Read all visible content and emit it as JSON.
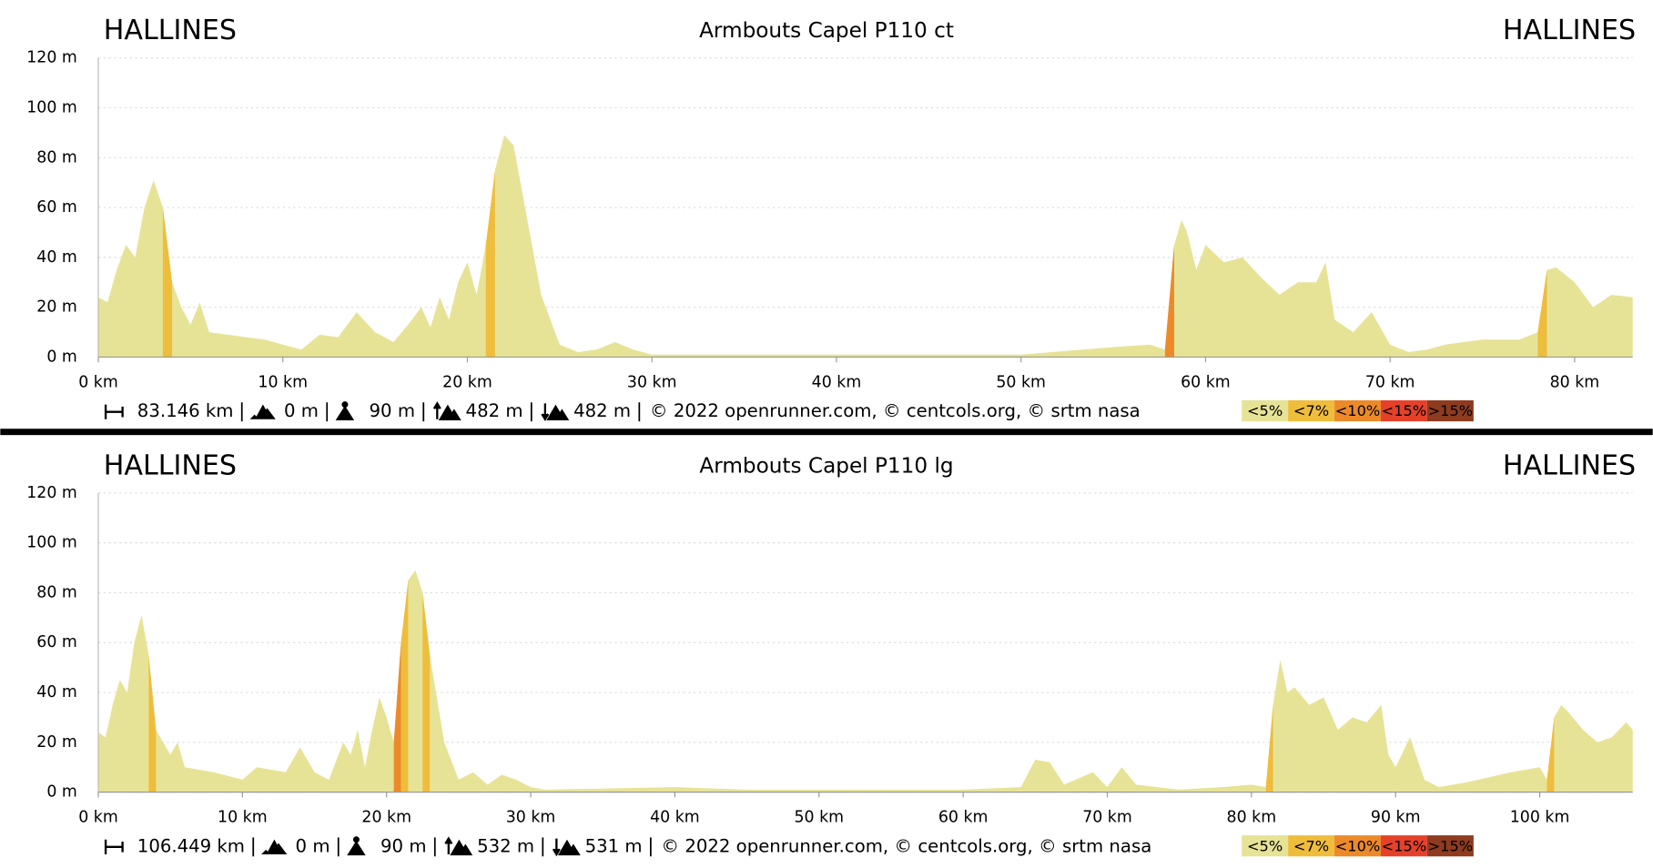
{
  "chart_data": [
    {
      "type": "area",
      "title": "Armbouts Capel P110 ct",
      "start_label": "HALLINES",
      "end_label": "HALLINES",
      "x": [
        0,
        0.5,
        1,
        1.5,
        2,
        2.5,
        3,
        3.5,
        4,
        4.5,
        5,
        5.5,
        6,
        7,
        8,
        9,
        10,
        11,
        12,
        13,
        14,
        15,
        16,
        17,
        17.5,
        18,
        18.5,
        19,
        19.5,
        20,
        20.5,
        21,
        21.5,
        22,
        22.5,
        23,
        24,
        25,
        26,
        27,
        28,
        29,
        30,
        35,
        40,
        45,
        50,
        55,
        57,
        57.8,
        58.3,
        58.7,
        59,
        59.5,
        60,
        61,
        62,
        63,
        64,
        65,
        66,
        66.5,
        67,
        68,
        69,
        70,
        71,
        72,
        73,
        75,
        77,
        78,
        78.5,
        79,
        80,
        81,
        82,
        83.146
      ],
      "values": [
        24,
        22,
        35,
        45,
        40,
        60,
        71,
        60,
        30,
        20,
        13,
        22,
        10,
        9,
        8,
        7,
        5,
        3,
        9,
        8,
        18,
        10,
        6,
        15,
        20,
        12,
        24,
        15,
        30,
        38,
        25,
        45,
        75,
        89,
        85,
        65,
        25,
        5,
        2,
        3,
        6,
        3,
        1,
        1,
        1,
        1,
        1,
        4,
        5,
        3,
        45,
        55,
        50,
        35,
        45,
        38,
        40,
        32,
        25,
        30,
        30,
        38,
        15,
        10,
        18,
        5,
        2,
        3,
        5,
        7,
        7,
        10,
        35,
        36,
        30,
        20,
        25,
        24
      ],
      "color": "#e6e396",
      "xlim": [
        0,
        83.146
      ],
      "ylim": [
        0,
        120
      ],
      "xticks": [
        {
          "value": 0,
          "label": "0 km"
        },
        {
          "value": 10,
          "label": "10 km"
        },
        {
          "value": 20,
          "label": "20 km"
        },
        {
          "value": 30,
          "label": "30 km"
        },
        {
          "value": 40,
          "label": "40 km"
        },
        {
          "value": 50,
          "label": "50 km"
        },
        {
          "value": 60,
          "label": "60 km"
        },
        {
          "value": 70,
          "label": "70 km"
        },
        {
          "value": 80,
          "label": "80 km"
        }
      ],
      "yticks": [
        {
          "value": 0,
          "label": "0 m"
        },
        {
          "value": 20,
          "label": "20 m"
        },
        {
          "value": 40,
          "label": "40 m"
        },
        {
          "value": 60,
          "label": "60 m"
        },
        {
          "value": 80,
          "label": "80 m"
        },
        {
          "value": 100,
          "label": "100 m"
        },
        {
          "value": 120,
          "label": "120 m"
        }
      ],
      "grid": true,
      "stats": {
        "distance": "83.146 km",
        "min_elevation": "0 m",
        "max_elevation": "90 m",
        "ascent": "482 m",
        "descent": "482 m"
      },
      "credits": "© 2022 openrunner.com, © centcols.org, © srtm nasa",
      "legend": [
        {
          "label": "<5%",
          "value": 5,
          "color": "#e6e396"
        },
        {
          "label": "<7%",
          "value": 7,
          "color": "#efbd3c"
        },
        {
          "label": "<10%",
          "value": 10,
          "color": "#ec8a2a"
        },
        {
          "label": "<15%",
          "value": 15,
          "color": "#e5412a"
        },
        {
          "label": ">15%",
          "value": 15,
          "color": "#8e3b1f"
        }
      ]
    },
    {
      "type": "area",
      "title": "Armbouts Capel P110 lg",
      "start_label": "HALLINES",
      "end_label": "HALLINES",
      "x": [
        0,
        0.5,
        1,
        1.5,
        2,
        2.5,
        3,
        3.5,
        4,
        5,
        5.5,
        6,
        8,
        10,
        11,
        13,
        14,
        15,
        16,
        17,
        17.5,
        18,
        18.5,
        19,
        19.5,
        20,
        20.5,
        21,
        21.5,
        22,
        22.5,
        23,
        24,
        25,
        26,
        27,
        28,
        29,
        30,
        31,
        40,
        45,
        50,
        55,
        60,
        64,
        65,
        66,
        67,
        69,
        70,
        71,
        72,
        75,
        78,
        80,
        81,
        81.5,
        82,
        82.5,
        83,
        84,
        85,
        86,
        87,
        88,
        89,
        89.5,
        90,
        91,
        92,
        93,
        95,
        98,
        100,
        100.5,
        101,
        101.5,
        102,
        103,
        104,
        105,
        106,
        106.449
      ],
      "values": [
        24,
        22,
        35,
        45,
        40,
        60,
        71,
        55,
        25,
        15,
        20,
        10,
        8,
        5,
        10,
        8,
        18,
        8,
        5,
        20,
        15,
        25,
        10,
        25,
        38,
        30,
        20,
        60,
        85,
        89,
        80,
        55,
        20,
        5,
        8,
        3,
        7,
        5,
        2,
        1,
        2,
        1,
        1,
        1,
        1,
        2,
        13,
        12,
        3,
        8,
        2,
        10,
        3,
        1,
        2,
        3,
        2,
        35,
        53,
        40,
        42,
        35,
        38,
        25,
        30,
        28,
        35,
        15,
        10,
        22,
        5,
        2,
        4,
        8,
        10,
        5,
        30,
        35,
        32,
        25,
        20,
        22,
        28,
        25
      ],
      "color": "#e6e396",
      "xlim": [
        0,
        106.449
      ],
      "ylim": [
        0,
        120
      ],
      "xticks": [
        {
          "value": 0,
          "label": "0 km"
        },
        {
          "value": 10,
          "label": "10 km"
        },
        {
          "value": 20,
          "label": "20 km"
        },
        {
          "value": 30,
          "label": "30 km"
        },
        {
          "value": 40,
          "label": "40 km"
        },
        {
          "value": 50,
          "label": "50 km"
        },
        {
          "value": 60,
          "label": "60 km"
        },
        {
          "value": 70,
          "label": "70 km"
        },
        {
          "value": 80,
          "label": "80 km"
        },
        {
          "value": 90,
          "label": "90 km"
        },
        {
          "value": 100,
          "label": "100 km"
        }
      ],
      "yticks": [
        {
          "value": 0,
          "label": "0 m"
        },
        {
          "value": 20,
          "label": "20 m"
        },
        {
          "value": 40,
          "label": "40 m"
        },
        {
          "value": 60,
          "label": "60 m"
        },
        {
          "value": 80,
          "label": "80 m"
        },
        {
          "value": 100,
          "label": "100 m"
        },
        {
          "value": 120,
          "label": "120 m"
        }
      ],
      "grid": true,
      "stats": {
        "distance": "106.449 km",
        "min_elevation": "0 m",
        "max_elevation": "90 m",
        "ascent": "532 m",
        "descent": "531 m"
      },
      "credits": "© 2022 openrunner.com, © centcols.org, © srtm nasa",
      "legend": [
        {
          "label": "<5%",
          "value": 5,
          "color": "#e6e396"
        },
        {
          "label": "<7%",
          "value": 7,
          "color": "#efbd3c"
        },
        {
          "label": "<10%",
          "value": 10,
          "color": "#ec8a2a"
        },
        {
          "label": "<15%",
          "value": 15,
          "color": "#e5412a"
        },
        {
          "label": ">15%",
          "value": 15,
          "color": "#8e3b1f"
        }
      ]
    }
  ]
}
